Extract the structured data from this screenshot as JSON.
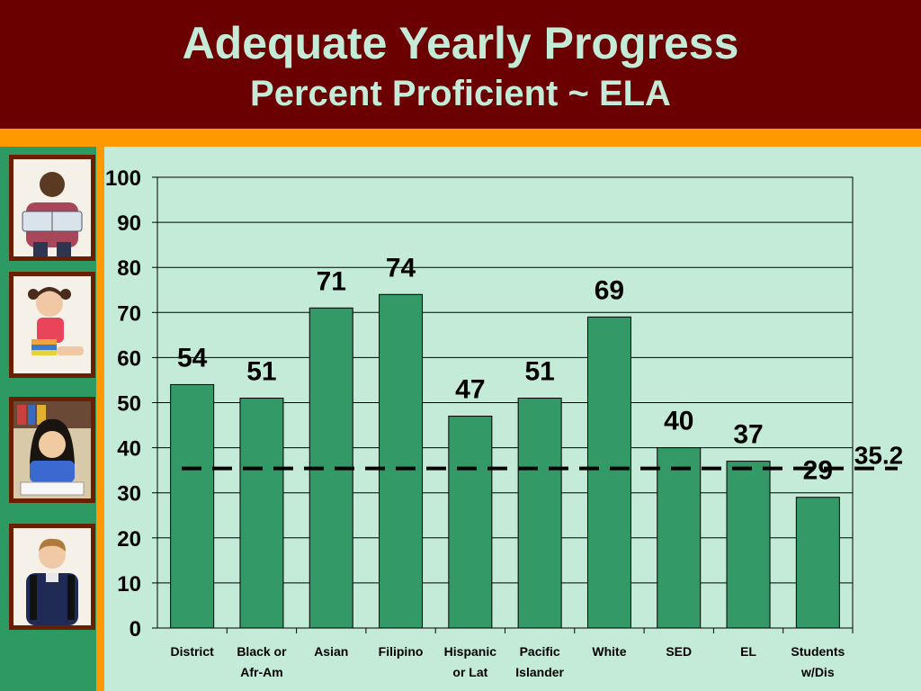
{
  "header": {
    "title": "Adequate Yearly Progress",
    "subtitle": "Percent Proficient ~ ELA"
  },
  "colors": {
    "background": "#c4ead8",
    "header": "#6b0000",
    "accent": "#ff9900",
    "bar": "#339966"
  },
  "photos": [
    "boy-reading-photo",
    "girl-with-books-photo",
    "girl-at-desk-photo",
    "boy-with-backpack-photo"
  ],
  "chart_data": {
    "type": "bar",
    "title": "Percent Proficient ~ ELA",
    "xlabel": "",
    "ylabel": "",
    "categories": [
      [
        "District"
      ],
      [
        "Black or",
        "Afr-Am"
      ],
      [
        "Asian"
      ],
      [
        "Filipino"
      ],
      [
        "Hispanic",
        "or Lat"
      ],
      [
        "Pacific",
        "Islander"
      ],
      [
        "White"
      ],
      [
        "SED"
      ],
      [
        "EL"
      ],
      [
        "Students",
        "w/Dis"
      ]
    ],
    "values": [
      54,
      51,
      71,
      74,
      47,
      51,
      69,
      40,
      37,
      29
    ],
    "ylim": [
      0,
      100
    ],
    "yticks": [
      0,
      10,
      20,
      30,
      40,
      50,
      60,
      70,
      80,
      90,
      100
    ],
    "grid": true,
    "legend": "none",
    "reference_line": {
      "value": 35.2,
      "label": "35.2",
      "style": "dashed"
    }
  }
}
